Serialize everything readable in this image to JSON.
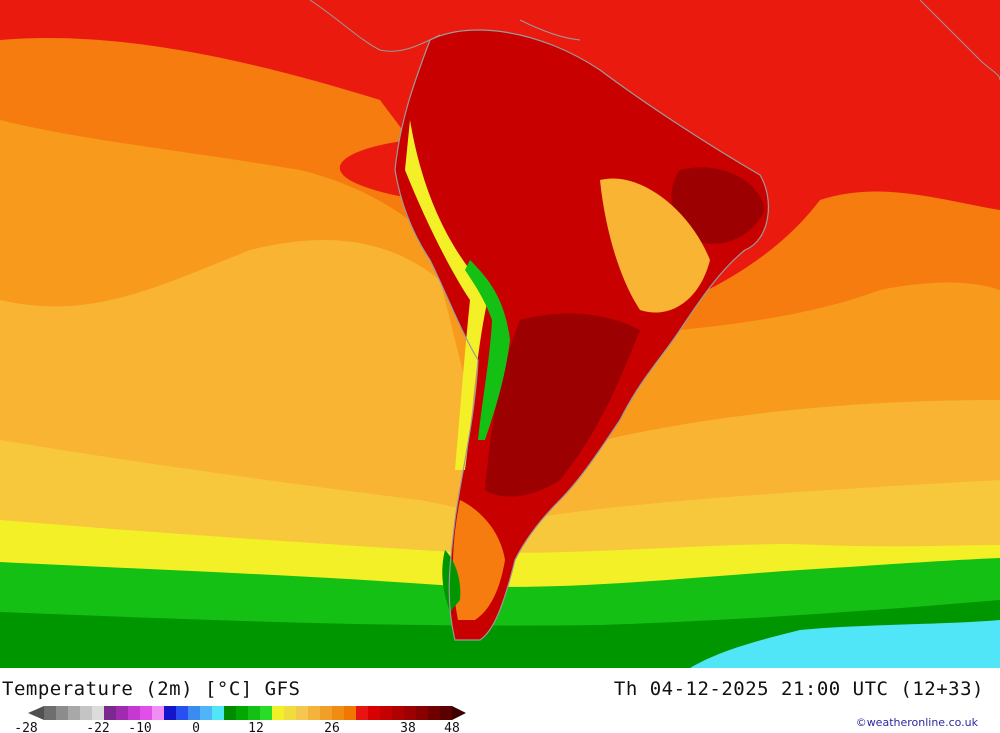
{
  "header": {
    "title": "Temperature (2m) [°C] GFS",
    "timestamp": "Th 04-12-2025 21:00 UTC (12+33)"
  },
  "legend": {
    "ticks": [
      "-28",
      "-22",
      "-10",
      "0",
      "12",
      "26",
      "38",
      "48"
    ],
    "swatch_colors": [
      "#6e6e6e",
      "#8c8c8c",
      "#a8a8a8",
      "#c4c4c4",
      "#dcdcdc",
      "#7a2a8e",
      "#a02ab0",
      "#c43ad0",
      "#e050e8",
      "#f08ef4",
      "#1414c8",
      "#2850f0",
      "#3c8cf0",
      "#50b4f8",
      "#50e6f8",
      "#008c00",
      "#00a800",
      "#14c014",
      "#28dc28",
      "#f0f028",
      "#f0dc3c",
      "#f4c850",
      "#f4b43c",
      "#f0a028",
      "#f08c14",
      "#f07800",
      "#e81414",
      "#d80000",
      "#c40000",
      "#b00000",
      "#9c0000",
      "#880000",
      "#700000",
      "#5a0000"
    ],
    "under_color": "#505050",
    "over_color": "#3c0000"
  },
  "credit": "©weatheronline.co.uk",
  "map_colors": {
    "red": "#ea1a0f",
    "deep_red": "#c80000",
    "dark_red": "#9c0000",
    "orange": "#f77c10",
    "light_orange": "#f89a1c",
    "amber": "#f8b432",
    "yellow_orange": "#f8c83c",
    "yellow": "#f4f028",
    "green": "#14c014",
    "dark_green": "#009600",
    "cyan": "#50e6f8",
    "coast": "#9a9a9a"
  }
}
